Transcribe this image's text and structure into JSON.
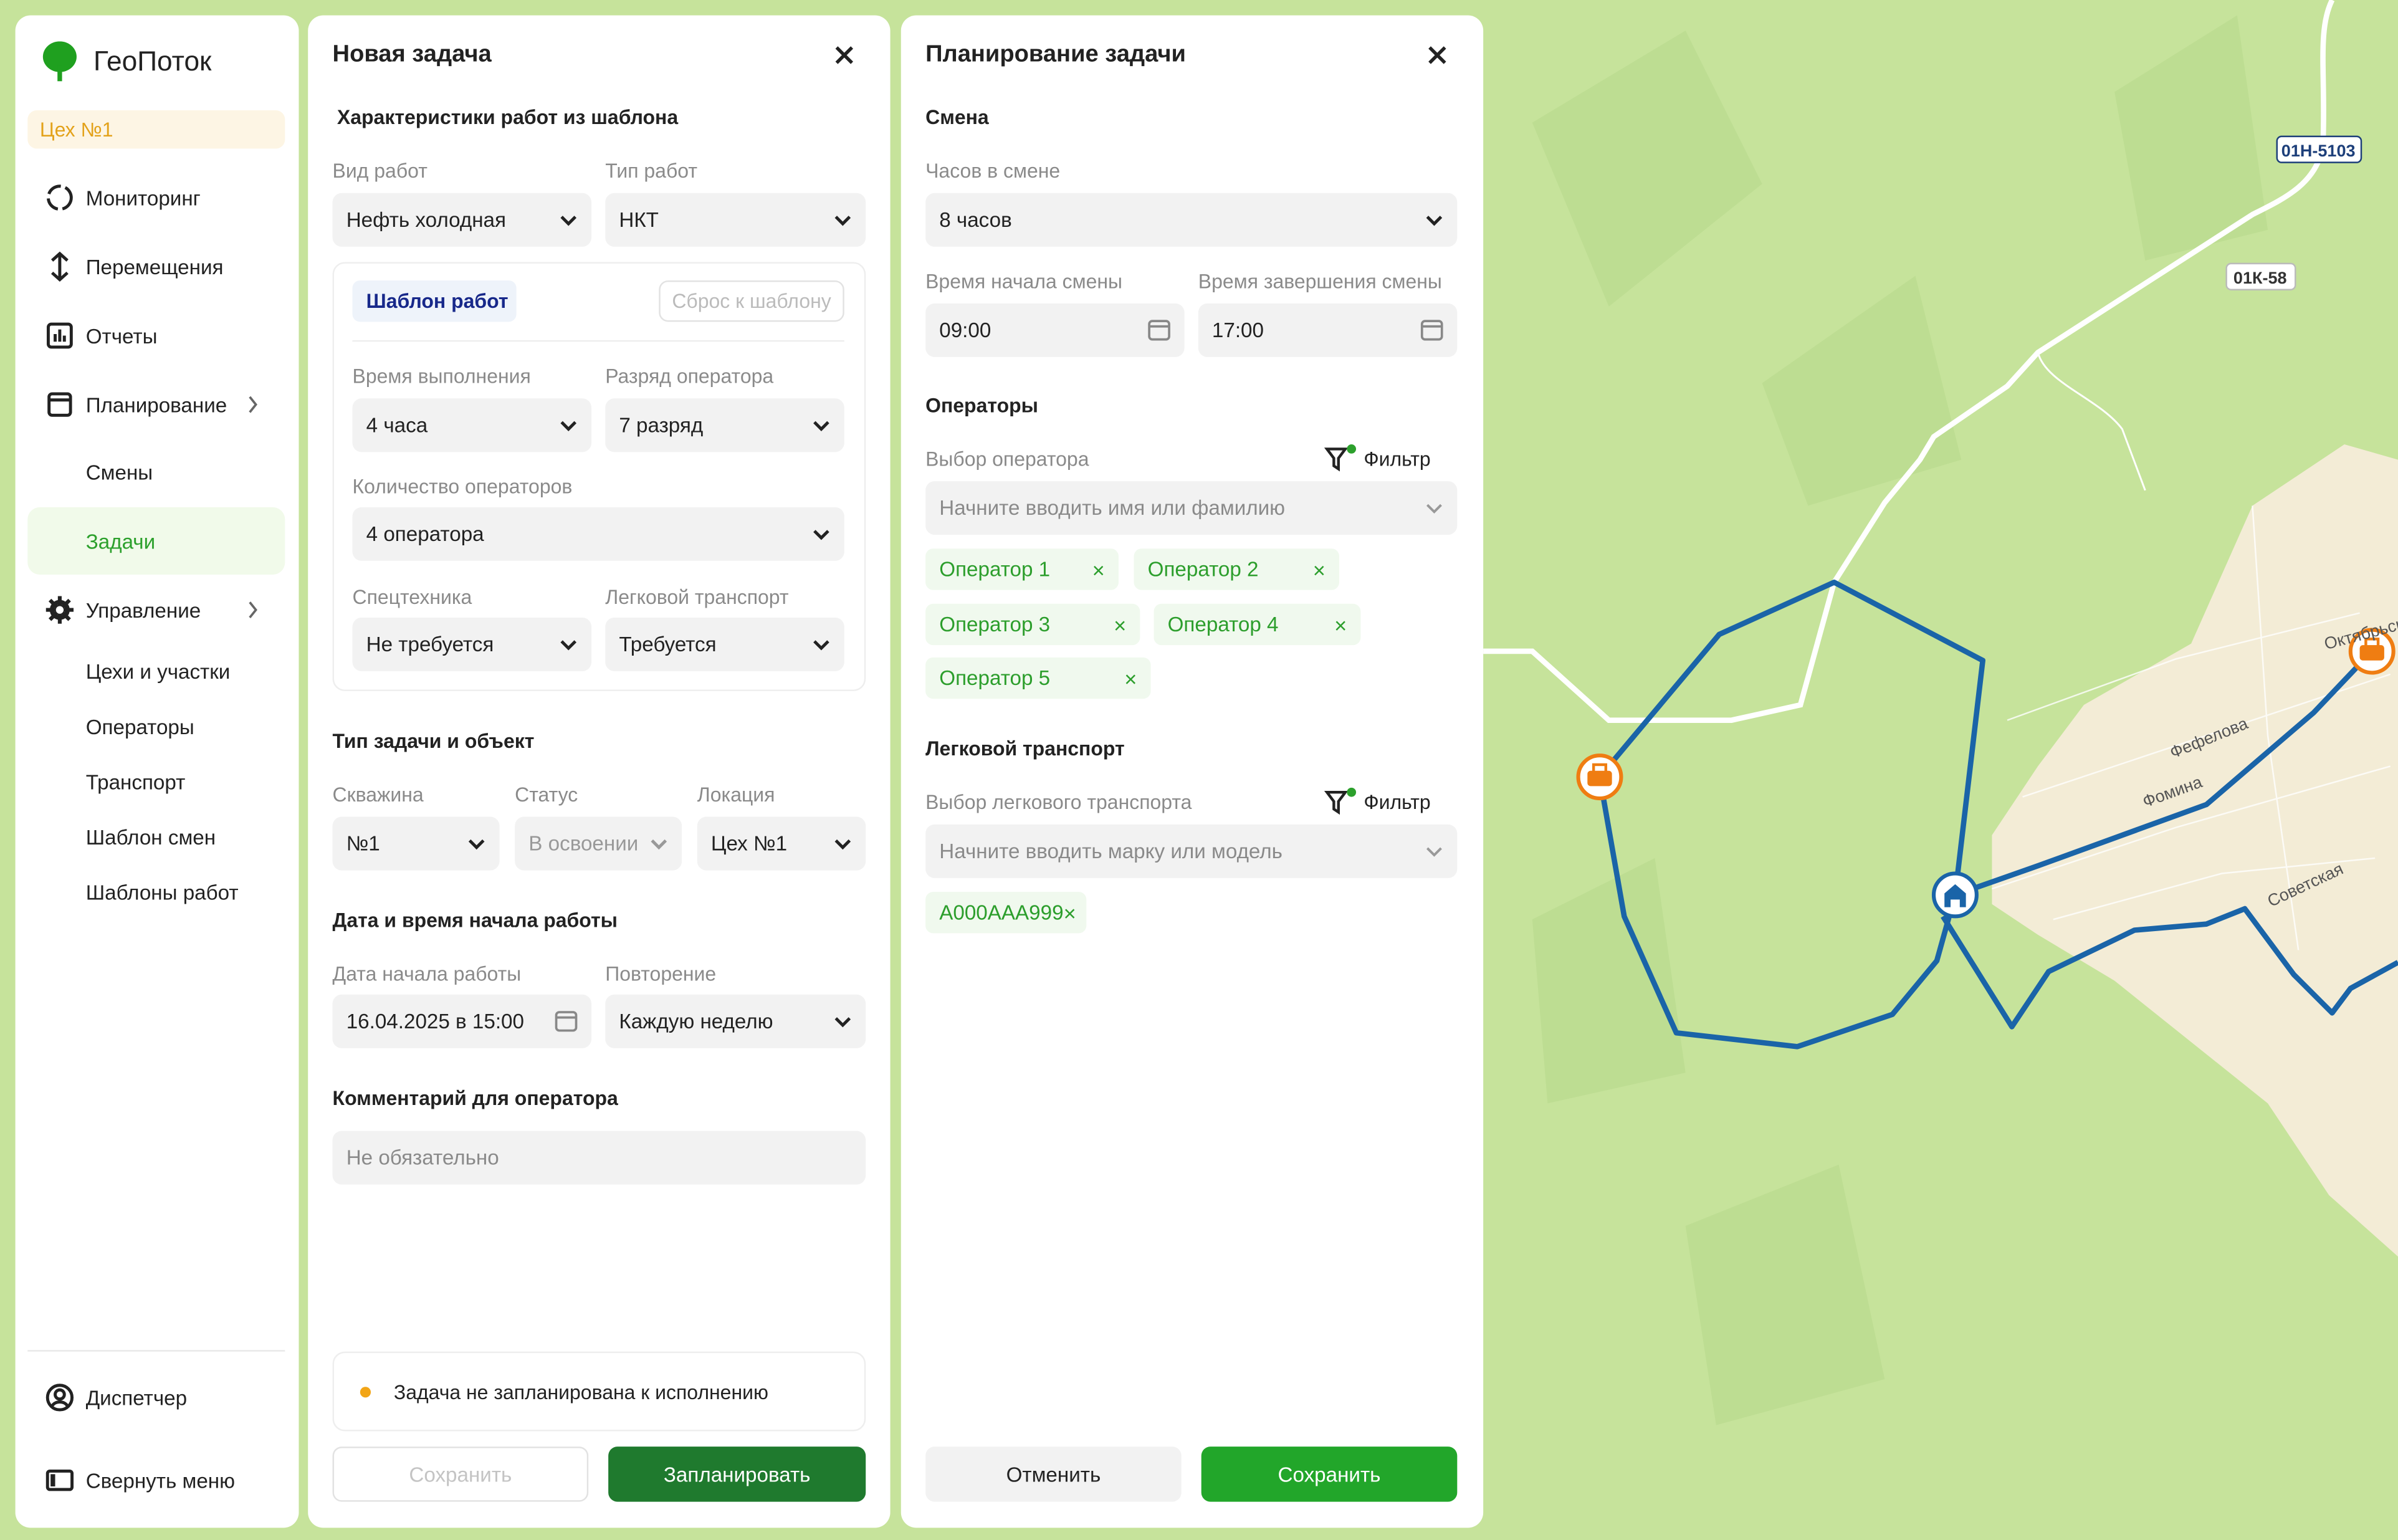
{
  "colors": {
    "accent": "#22a62a",
    "dark_green": "#1f7a2e",
    "route": "#1a64a8",
    "marker": "#ef7d12",
    "map_green": "#c5e29a",
    "town": "#f3ecd6"
  },
  "sidebar": {
    "logo_text": "ГеоПоток",
    "workshop": "Цех №1",
    "items": [
      {
        "label": "Мониторинг",
        "icon": "monitoring-icon"
      },
      {
        "label": "Перемещения",
        "icon": "arrows-updown-icon"
      },
      {
        "label": "Отчеты",
        "icon": "chart-icon"
      },
      {
        "label": "Планирование",
        "icon": "calendar-icon",
        "expandable": true
      },
      {
        "label": "Смены"
      },
      {
        "label": "Задачи",
        "active": true
      },
      {
        "label": "Управление",
        "icon": "gear-icon",
        "expandable": true
      },
      {
        "label": "Цехи и участки"
      },
      {
        "label": "Операторы"
      },
      {
        "label": "Транспорт"
      },
      {
        "label": "Шаблон смен"
      },
      {
        "label": "Шаблоны работ"
      }
    ],
    "user": "Диспетчер",
    "collapse": "Свернуть меню"
  },
  "new_task": {
    "title": "Новая задача",
    "template_section": "Характеристики работ из шаблона",
    "work_kind_label": "Вид работ",
    "work_kind": "Нефть холодная",
    "work_type_label": "Тип работ",
    "work_type": "НКТ",
    "template_tag": "Шаблон работ",
    "reset_template": "Сброс к шаблону",
    "duration_label": "Время выполнения",
    "duration": "4 часа",
    "grade_label": "Разряд оператора",
    "grade": "7 разряд",
    "operators_count_label": "Количество операторов",
    "operators_count": "4 оператора",
    "special_label": "Спецтехника",
    "special": "Не требуется",
    "car_label": "Легковой транспорт",
    "car": "Требуется",
    "object_section": "Тип задачи и объект",
    "well_label": "Скважина",
    "well": "№1",
    "status_label": "Статус",
    "status": "В освоении",
    "location_label": "Локация",
    "location": "Цех №1",
    "date_section": "Дата и время начала работы",
    "start_label": "Дата начала работы",
    "start": "16.04.2025 в 15:00",
    "repeat_label": "Повторение",
    "repeat": "Каждую неделю",
    "comment_section": "Комментарий для оператора",
    "comment_placeholder": "Не обязательно",
    "notice": "Задача не запланирована к исполнению",
    "save": "Сохранить",
    "schedule": "Запланировать"
  },
  "planning": {
    "title": "Планирование задачи",
    "shift_section": "Смена",
    "hours_label": "Часов в смене",
    "hours": "8 часов",
    "start_label": "Время начала смены",
    "start": "09:00",
    "end_label": "Время завершения смены",
    "end": "17:00",
    "operators_section": "Операторы",
    "operator_select_label": "Выбор оператора",
    "filter": "Фильтр",
    "operator_placeholder": "Начните вводить имя или фамилию",
    "operators": [
      "Оператор 1",
      "Оператор 2",
      "Оператор 3",
      "Оператор 4",
      "Оператор 5"
    ],
    "car_section": "Легковой транспорт",
    "car_select_label": "Выбор легкового транспорта",
    "car_placeholder": "Начните вводить марку или модель",
    "cars": [
      "А000ААА999"
    ],
    "cancel": "Отменить",
    "save": "Сохранить"
  },
  "map": {
    "road_labels": [
      "01Н-5103",
      "01К-58"
    ],
    "streets": [
      "Фефелова",
      "Фомина",
      "Советская",
      "Октябрьская"
    ],
    "markers": [
      "toolbox-marker",
      "home-marker",
      "toolbox-marker"
    ]
  }
}
